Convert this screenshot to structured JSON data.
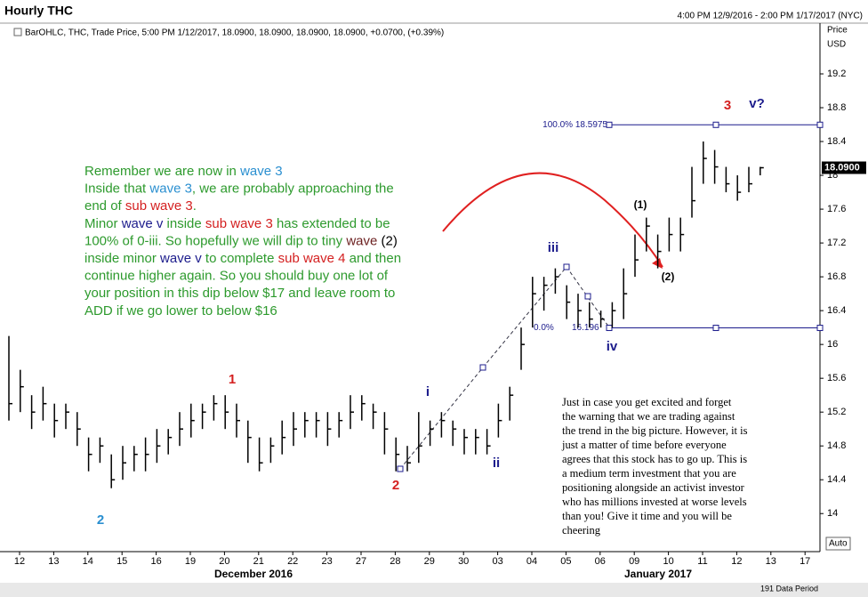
{
  "header": {
    "title": "Hourly THC",
    "range": "4:00 PM 12/9/2016 - 2:00 PM 1/17/2017 (NYC)",
    "legend": "BarOHLC, THC, Trade Price, 5:00 PM 1/12/2017, 18.0900, 18.0900, 18.0900, 18.0900, +0.0700, (+0.39%)",
    "axis_title": "Price",
    "axis_unit": "USD"
  },
  "chart_data": {
    "type": "ohlc",
    "color": "#000000",
    "categories": [
      "12",
      "13",
      "14",
      "15",
      "16",
      "19",
      "20",
      "21",
      "22",
      "23",
      "27",
      "28",
      "29",
      "30",
      "03",
      "04",
      "05",
      "06",
      "09",
      "10",
      "11",
      "12",
      "13",
      "17"
    ],
    "months": [
      "December 2016",
      "January 2017"
    ],
    "ylim": [
      13.55,
      19.8
    ],
    "yticks": [
      14,
      14.4,
      14.8,
      15.2,
      15.6,
      16,
      16.4,
      16.8,
      17.2,
      17.6,
      18,
      18.4,
      18.8,
      19.2
    ],
    "high": [
      16.1,
      15.7,
      15.4,
      15.5,
      15.3,
      15.3,
      15.2,
      14.9,
      14.9,
      14.7,
      14.8,
      14.8,
      14.9,
      15.0,
      15.0,
      15.2,
      15.3,
      15.3,
      15.4,
      15.4,
      15.3,
      15.1,
      14.9,
      14.9,
      15.1,
      15.2,
      15.2,
      15.2,
      15.2,
      15.2,
      15.4,
      15.4,
      15.3,
      15.2,
      14.9,
      14.8,
      15.2,
      15.1,
      15.2,
      15.1,
      15.0,
      15.0,
      15.0,
      15.3,
      15.5,
      16.2,
      16.8,
      16.8,
      16.9,
      16.7,
      16.6,
      16.5,
      16.4,
      16.5,
      16.9,
      17.3,
      17.5,
      17.3,
      17.5,
      17.5,
      18.1,
      18.4,
      18.3,
      18.1,
      18.0,
      18.1,
      18.1
    ],
    "low": [
      15.1,
      15.2,
      15.0,
      15.1,
      14.9,
      15.0,
      14.8,
      14.5,
      14.6,
      14.3,
      14.4,
      14.5,
      14.5,
      14.6,
      14.7,
      14.8,
      14.9,
      15.0,
      15.1,
      15.0,
      14.9,
      14.6,
      14.5,
      14.6,
      14.7,
      14.8,
      14.9,
      14.9,
      14.8,
      14.9,
      15.0,
      15.1,
      15.0,
      14.7,
      14.5,
      14.5,
      14.6,
      14.8,
      14.9,
      14.8,
      14.7,
      14.7,
      14.7,
      14.9,
      15.1,
      15.7,
      16.2,
      16.4,
      16.6,
      16.3,
      16.2,
      16.2,
      16.2,
      16.2,
      16.3,
      16.8,
      17.1,
      16.9,
      17.1,
      17.1,
      17.5,
      17.9,
      17.9,
      17.8,
      17.7,
      17.8,
      18.0
    ],
    "close": [
      15.3,
      15.5,
      15.2,
      15.3,
      15.1,
      15.2,
      15.0,
      14.7,
      14.8,
      14.4,
      14.6,
      14.7,
      14.7,
      14.8,
      14.9,
      15.0,
      15.1,
      15.2,
      15.3,
      15.2,
      15.1,
      14.9,
      14.6,
      14.8,
      14.9,
      15.0,
      15.1,
      15.1,
      15.0,
      15.1,
      15.2,
      15.3,
      15.2,
      15.0,
      14.7,
      14.6,
      14.8,
      15.0,
      15.1,
      15.0,
      14.9,
      14.9,
      14.8,
      15.1,
      15.4,
      16.0,
      16.6,
      16.7,
      16.8,
      16.5,
      16.4,
      16.3,
      16.3,
      16.4,
      16.6,
      17.0,
      17.4,
      17.1,
      17.3,
      17.3,
      17.7,
      18.2,
      18.1,
      17.9,
      17.8,
      17.9,
      18.09
    ],
    "last": {
      "value": 18.09,
      "label": "18.0900"
    },
    "fib": [
      {
        "value": 18.5975,
        "label": "100.0% 18.5975"
      },
      {
        "value": 16.196,
        "label": "0.0%"
      }
    ],
    "waves": [
      {
        "label": "1",
        "color": "#d42020"
      },
      {
        "label": "2",
        "color": "#d42020"
      },
      {
        "label": "2",
        "color": "#2a8fd0"
      },
      {
        "label": "i",
        "color": "#1c1c8c"
      },
      {
        "label": "ii",
        "color": "#1c1c8c"
      },
      {
        "label": "iii",
        "color": "#1c1c8c"
      },
      {
        "label": "iv",
        "color": "#1c1c8c"
      },
      {
        "label": "(1)",
        "color": "#000000"
      },
      {
        "label": "(2)",
        "color": "#000000"
      },
      {
        "label": "3",
        "color": "#d42020"
      },
      {
        "label": "v?",
        "color": "#1c1c8c"
      }
    ]
  },
  "note": {
    "lines": [
      [
        {
          "text": "Remember we are now in ",
          "color": "#2d9a2d"
        },
        {
          "text": "wave 3",
          "color": "#2a8fd0"
        }
      ],
      [
        {
          "text": "Inside that ",
          "color": "#2d9a2d"
        },
        {
          "text": "wave 3",
          "color": "#2a8fd0"
        },
        {
          "text": ", we are probably approaching the",
          "color": "#2d9a2d"
        }
      ],
      [
        {
          "text": "end of ",
          "color": "#2d9a2d"
        },
        {
          "text": "sub wave 3",
          "color": "#d42020"
        },
        {
          "text": ".",
          "color": "#2d9a2d"
        }
      ],
      [
        {
          "text": "Minor ",
          "color": "#2d9a2d"
        },
        {
          "text": "wave v",
          "color": "#1c1c8c"
        },
        {
          "text": " inside ",
          "color": "#2d9a2d"
        },
        {
          "text": "sub wave 3",
          "color": "#d42020"
        },
        {
          "text": " has extended to be",
          "color": "#2d9a2d"
        }
      ],
      [
        {
          "text": "100% of 0-iii. So hopefully we will dip to tiny ",
          "color": "#2d9a2d"
        },
        {
          "text": "wave",
          "color": "#6b1f1f"
        },
        {
          "text": " (2)",
          "color": "#000000"
        }
      ],
      [
        {
          "text": "inside minor ",
          "color": "#2d9a2d"
        },
        {
          "text": "wave v",
          "color": "#1c1c8c"
        },
        {
          "text": " to complete ",
          "color": "#2d9a2d"
        },
        {
          "text": "sub wave 4",
          "color": "#d42020"
        },
        {
          "text": " and then",
          "color": "#2d9a2d"
        }
      ],
      [
        {
          "text": "continue higher again. So you should buy one lot of",
          "color": "#2d9a2d"
        }
      ],
      [
        {
          "text": "your position in this dip below $17 and leave room to",
          "color": "#2d9a2d"
        }
      ],
      [
        {
          "text": "ADD if we go lower to below $16",
          "color": "#2d9a2d"
        }
      ]
    ]
  },
  "warning": [
    "Just in case you get excited and forget",
    "the warning that we are trading against",
    "the trend in the big picture. However, it is",
    "just a matter of time before everyone",
    "agrees that this stock has to go up. This is",
    "a medium term investment that you are",
    "positioning alongside an activist investor",
    "who has millions invested at worse levels",
    "than you! Give it time and you will be",
    "cheering"
  ],
  "footer": {
    "periods": "191 Data Period",
    "auto": "Auto"
  }
}
